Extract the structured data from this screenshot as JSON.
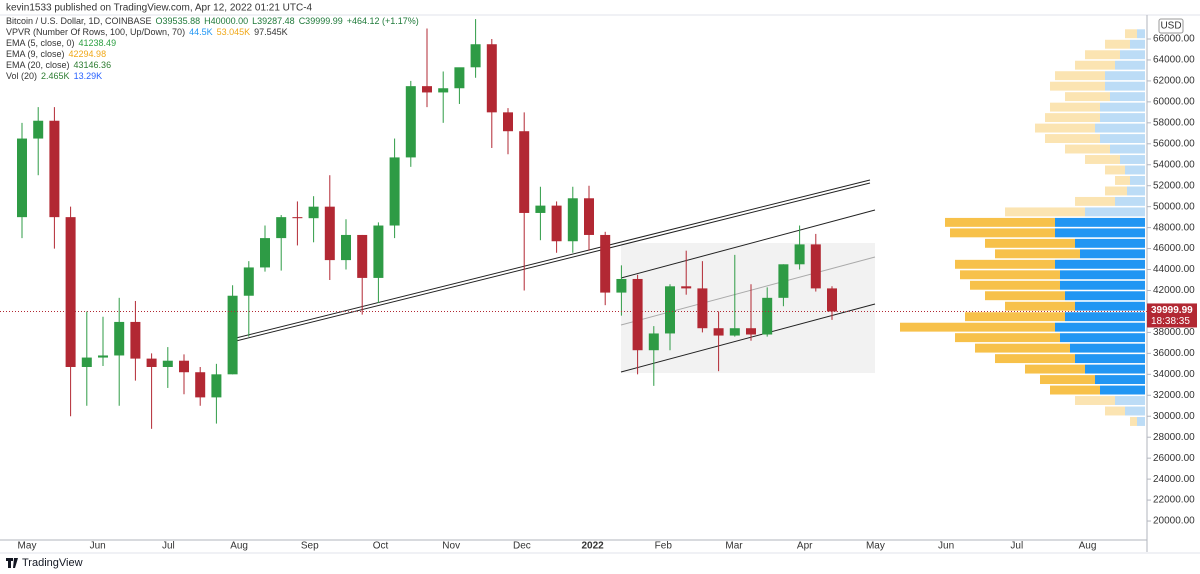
{
  "chart_data": {
    "type": "candlestick",
    "publisher": "kevin1533 published on TradingView.com, Apr 12, 2022 01:21 UTC-4",
    "brand": "TradingView",
    "currency": "USD",
    "last_price": {
      "value": 39999.99,
      "label": "39999.99"
    },
    "countdown": "18:38:35",
    "legend": [
      {
        "name": "Bitcoin / U.S. Dollar, 1D, COINBASE",
        "parts": [
          {
            "text": "O39535.88",
            "color": "#1f7a3a"
          },
          {
            "text": "H40000.00",
            "color": "#1f7a3a"
          },
          {
            "text": "L39287.48",
            "color": "#1f7a3a"
          },
          {
            "text": "C39999.99",
            "color": "#1f7a3a"
          },
          {
            "text": "+464.12 (+1.17%)",
            "color": "#1f7a3a"
          }
        ]
      },
      {
        "name": "VPVR (Number Of Rows, 100, Up/Down, 70)",
        "parts": [
          {
            "text": "44.5K",
            "color": "#2196f3"
          },
          {
            "text": "53.045K",
            "color": "#f0a818"
          },
          {
            "text": "97.545K",
            "color": "#333333"
          }
        ]
      },
      {
        "name": "EMA (5, close, 0)",
        "parts": [
          {
            "text": "41238.49",
            "color": "#2ea043"
          }
        ]
      },
      {
        "name": "EMA (9, close)",
        "parts": [
          {
            "text": "42294.98",
            "color": "#f0a818"
          }
        ]
      },
      {
        "name": "EMA (20, close)",
        "parts": [
          {
            "text": "43146.36",
            "color": "#2e7d32"
          }
        ]
      },
      {
        "name": "Vol (20)",
        "parts": [
          {
            "text": "2.465K",
            "color": "#2e7d32"
          },
          {
            "text": "13.29K",
            "color": "#2962ff"
          }
        ]
      }
    ],
    "categories": [
      "May",
      "Jun",
      "Jul",
      "Aug",
      "Sep",
      "Oct",
      "Nov",
      "Dec",
      "2022",
      "Feb",
      "Mar",
      "Apr",
      "May",
      "Jun",
      "Jul",
      "Aug"
    ],
    "open": [
      49000,
      56500,
      58200,
      49000,
      34700,
      35600,
      35800,
      39000,
      35500,
      34700,
      35300,
      34200,
      31800,
      34000,
      41500,
      44200,
      47000,
      49000,
      48900,
      50000,
      44900,
      47300,
      43200,
      48200,
      54700,
      61500,
      60900,
      61300,
      63300,
      65500,
      59000,
      57200,
      49400,
      50100,
      46700,
      50800,
      47300,
      41800,
      43100,
      36300,
      37900,
      42400,
      42200,
      38400,
      37700,
      38400,
      37800,
      41300,
      44500,
      46400,
      42200
    ],
    "high": [
      58000,
      59500,
      59500,
      50000,
      40000,
      39500,
      41300,
      41000,
      36000,
      36600,
      35900,
      34700,
      35000,
      42500,
      44800,
      48200,
      49200,
      50500,
      51000,
      53000,
      48800,
      47300,
      48500,
      56500,
      62000,
      67000,
      62900,
      63000,
      67900,
      66000,
      59400,
      59000,
      51900,
      50500,
      51900,
      52000,
      47600,
      44400,
      43500,
      38600,
      42600,
      45800,
      44800,
      40000,
      45400,
      42600,
      42300,
      44500,
      48200,
      47400,
      42400
    ],
    "low": [
      47000,
      53000,
      46000,
      30000,
      31000,
      34800,
      31000,
      33400,
      28800,
      32700,
      32100,
      31000,
      29300,
      34000,
      37600,
      43800,
      43900,
      46300,
      46600,
      43000,
      44000,
      39700,
      40800,
      47000,
      53800,
      59500,
      58000,
      59800,
      62300,
      55600,
      55000,
      42000,
      46800,
      45600,
      45600,
      45800,
      40600,
      39600,
      34000,
      32900,
      36300,
      41600,
      38000,
      34300,
      37600,
      37200,
      37600,
      40500,
      44000,
      41900,
      39200
    ],
    "close": [
      56500,
      58200,
      49000,
      34700,
      35600,
      35800,
      39000,
      35500,
      34700,
      35300,
      34200,
      31800,
      34000,
      41500,
      44200,
      47000,
      49000,
      48900,
      50000,
      44900,
      47300,
      43200,
      48200,
      54700,
      61500,
      60900,
      61300,
      63300,
      65500,
      59000,
      57200,
      49400,
      50100,
      46700,
      50800,
      47300,
      41800,
      43100,
      36300,
      37900,
      42400,
      42200,
      38400,
      37700,
      38400,
      37800,
      41300,
      44500,
      46400,
      42200,
      40000
    ],
    "up_color": "#2e9b45",
    "down_color": "#b22833",
    "ylim": [
      18190,
      68290
    ],
    "yticks": [
      {
        "value": 20000,
        "label": "20000.00"
      },
      {
        "value": 22000,
        "label": "22000.00"
      },
      {
        "value": 24000,
        "label": "24000.00"
      },
      {
        "value": 26000,
        "label": "26000.00"
      },
      {
        "value": 28000,
        "label": "28000.00"
      },
      {
        "value": 30000,
        "label": "30000.00"
      },
      {
        "value": 32000,
        "label": "32000.00"
      },
      {
        "value": 34000,
        "label": "34000.00"
      },
      {
        "value": 36000,
        "label": "36000.00"
      },
      {
        "value": 38000,
        "label": "38000.00"
      },
      {
        "value": 40000,
        "label": "40000.00"
      },
      {
        "value": 42000,
        "label": "42000.00"
      },
      {
        "value": 44000,
        "label": "44000.00"
      },
      {
        "value": 46000,
        "label": "46000.00"
      },
      {
        "value": 48000,
        "label": "48000.00"
      },
      {
        "value": 50000,
        "label": "50000.00"
      },
      {
        "value": 52000,
        "label": "52000.00"
      },
      {
        "value": 54000,
        "label": "54000.00"
      },
      {
        "value": 56000,
        "label": "56000.00"
      },
      {
        "value": 58000,
        "label": "58000.00"
      },
      {
        "value": 60000,
        "label": "60000.00"
      },
      {
        "value": 62000,
        "label": "62000.00"
      },
      {
        "value": 64000,
        "label": "64000.00"
      },
      {
        "value": 66000,
        "label": "66000.00"
      }
    ],
    "volume_profile": {
      "prices": [
        66500,
        65500,
        64500,
        63500,
        62500,
        61500,
        60500,
        59500,
        58500,
        57500,
        56500,
        55500,
        54500,
        53500,
        52500,
        51500,
        50500,
        49500,
        48500,
        47500,
        46500,
        45500,
        44500,
        43500,
        42500,
        41500,
        40500,
        39500,
        38500,
        37500,
        36500,
        35500,
        34500,
        33500,
        32500,
        31500,
        30500,
        29500
      ],
      "up": [
        8,
        15,
        25,
        30,
        40,
        40,
        35,
        45,
        45,
        50,
        45,
        35,
        25,
        20,
        15,
        18,
        30,
        60,
        90,
        90,
        70,
        65,
        90,
        85,
        85,
        80,
        70,
        80,
        90,
        85,
        75,
        70,
        60,
        50,
        45,
        30,
        20,
        8
      ],
      "down": [
        12,
        25,
        35,
        40,
        50,
        55,
        45,
        50,
        55,
        60,
        55,
        45,
        35,
        20,
        15,
        22,
        40,
        80,
        110,
        105,
        90,
        85,
        100,
        100,
        90,
        80,
        70,
        100,
        155,
        105,
        95,
        80,
        60,
        55,
        50,
        40,
        20,
        7
      ],
      "value_area": [
        32000,
        49000
      ],
      "up_color": "#2196f3",
      "down_color": "#f7c14a",
      "up_color_light": "#bcdcf6",
      "down_color_light": "#fbe4b2"
    }
  }
}
